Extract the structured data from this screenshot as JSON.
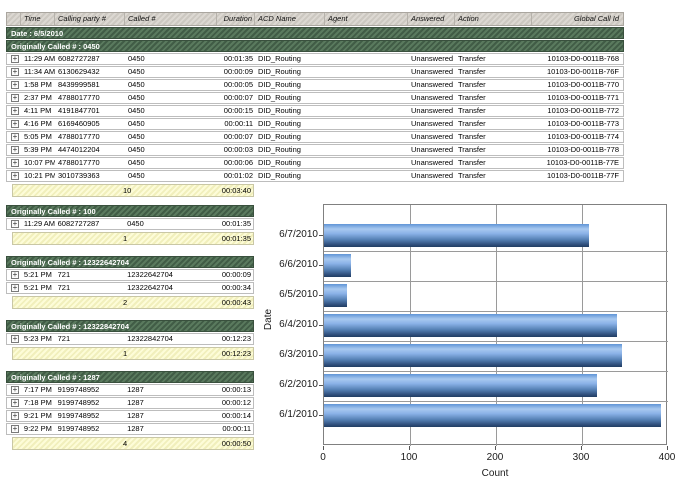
{
  "colors": {
    "group_band_green": "#4d6a51",
    "summary_yellow": "#f8f6c8",
    "bar_blue": "#5b8fd6",
    "header_gray": "#d4d0c9",
    "grid_gray": "#9a9a9a"
  },
  "table": {
    "expand_glyph": "+",
    "columns": [
      {
        "key": "expand",
        "label": ""
      },
      {
        "key": "time",
        "label": "Time"
      },
      {
        "key": "calling",
        "label": "Calling party #"
      },
      {
        "key": "called",
        "label": "Called #"
      },
      {
        "key": "duration",
        "label": "Duration"
      },
      {
        "key": "acd",
        "label": "ACD Name"
      },
      {
        "key": "agent",
        "label": "Agent"
      },
      {
        "key": "answered",
        "label": "Answered"
      },
      {
        "key": "action",
        "label": "Action"
      },
      {
        "key": "gcid",
        "label": "Global Call Id"
      }
    ],
    "date_band": "Date : 6/5/2010",
    "groups": [
      {
        "header": "Originally Called # : 0450",
        "rows": [
          {
            "time": "11:29 AM",
            "calling": "6082727287",
            "called": "0450",
            "duration": "00:01:35",
            "acd": "DID_Routing",
            "agent": "",
            "answered": "Unanswered",
            "action": "Transfer",
            "gcid": "10103-D0-0011B-768"
          },
          {
            "time": "11:34 AM",
            "calling": "6130629432",
            "called": "0450",
            "duration": "00:00:09",
            "acd": "DID_Routing",
            "agent": "",
            "answered": "Unanswered",
            "action": "Transfer",
            "gcid": "10103-D0-0011B-76F"
          },
          {
            "time": "1:58 PM",
            "calling": "8439999581",
            "called": "0450",
            "duration": "00:00:05",
            "acd": "DID_Routing",
            "agent": "",
            "answered": "Unanswered",
            "action": "Transfer",
            "gcid": "10103-D0-0011B-770"
          },
          {
            "time": "2:37 PM",
            "calling": "4788017770",
            "called": "0450",
            "duration": "00:00:07",
            "acd": "DID_Routing",
            "agent": "",
            "answered": "Unanswered",
            "action": "Transfer",
            "gcid": "10103-D0-0011B-771"
          },
          {
            "time": "4:11 PM",
            "calling": "4191847701",
            "called": "0450",
            "duration": "00:00:15",
            "acd": "DID_Routing",
            "agent": "",
            "answered": "Unanswered",
            "action": "Transfer",
            "gcid": "10103-D0-0011B-772"
          },
          {
            "time": "4:16 PM",
            "calling": "6169460905",
            "called": "0450",
            "duration": "00:00:11",
            "acd": "DID_Routing",
            "agent": "",
            "answered": "Unanswered",
            "action": "Transfer",
            "gcid": "10103-D0-0011B-773"
          },
          {
            "time": "5:05 PM",
            "calling": "4788017770",
            "called": "0450",
            "duration": "00:00:07",
            "acd": "DID_Routing",
            "agent": "",
            "answered": "Unanswered",
            "action": "Transfer",
            "gcid": "10103-D0-0011B-774"
          },
          {
            "time": "5:39 PM",
            "calling": "4474012204",
            "called": "0450",
            "duration": "00:00:03",
            "acd": "DID_Routing",
            "agent": "",
            "answered": "Unanswered",
            "action": "Transfer",
            "gcid": "10103-D0-0011B-778"
          },
          {
            "time": "10:07 PM",
            "calling": "4788017770",
            "called": "0450",
            "duration": "00:00:06",
            "acd": "DID_Routing",
            "agent": "",
            "answered": "Unanswered",
            "action": "Transfer",
            "gcid": "10103-D0-0011B-77E"
          },
          {
            "time": "10:21 PM",
            "calling": "3010739363",
            "called": "0450",
            "duration": "00:01:02",
            "acd": "DID_Routing",
            "agent": "",
            "answered": "Unanswered",
            "action": "Transfer",
            "gcid": "10103-D0-0011B-77F"
          }
        ],
        "summary": {
          "count": "10",
          "duration": "00:03:40"
        }
      },
      {
        "header": "Originally Called # : 100",
        "rows": [
          {
            "time": "11:29 AM",
            "calling": "6082727287",
            "called": "0450",
            "duration": "00:01:35"
          }
        ],
        "summary": {
          "count": "1",
          "duration": "00:01:35"
        }
      },
      {
        "header": "Originally Called # : 12322642704",
        "rows": [
          {
            "time": "5:21 PM",
            "calling": "721",
            "called": "12322642704",
            "duration": "00:00:09"
          },
          {
            "time": "5:21 PM",
            "calling": "721",
            "called": "12322642704",
            "duration": "00:00:34"
          }
        ],
        "summary": {
          "count": "2",
          "duration": "00:00:43"
        }
      },
      {
        "header": "Originally Called # : 12322842704",
        "rows": [
          {
            "time": "5:23 PM",
            "calling": "721",
            "called": "12322842704",
            "duration": "00:12:23"
          }
        ],
        "summary": {
          "count": "1",
          "duration": "00:12:23"
        }
      },
      {
        "header": "Originally Called # : 1287",
        "rows": [
          {
            "time": "7:17 PM",
            "calling": "9199748952",
            "called": "1287",
            "duration": "00:00:13"
          },
          {
            "time": "7:18 PM",
            "calling": "9199748952",
            "called": "1287",
            "duration": "00:00:12"
          },
          {
            "time": "9:21 PM",
            "calling": "9199748952",
            "called": "1287",
            "duration": "00:00:14"
          },
          {
            "time": "9:22 PM",
            "calling": "9199748952",
            "called": "1287",
            "duration": "00:00:11"
          }
        ],
        "summary": {
          "count": "4",
          "duration": "00:00:50"
        }
      }
    ]
  },
  "chart_data": {
    "type": "bar",
    "orientation": "horizontal",
    "categories": [
      "6/7/2010",
      "6/6/2010",
      "6/5/2010",
      "6/4/2010",
      "6/3/2010",
      "6/2/2010",
      "6/1/2010"
    ],
    "values": [
      308,
      31,
      27,
      341,
      347,
      317,
      392
    ],
    "title": "",
    "xlabel": "Count",
    "ylabel": "Date",
    "xlim": [
      0,
      400
    ],
    "xticks": [
      0,
      100,
      200,
      300,
      400
    ],
    "grid": true,
    "legend": false,
    "bar_color": "#5b8fd6"
  }
}
